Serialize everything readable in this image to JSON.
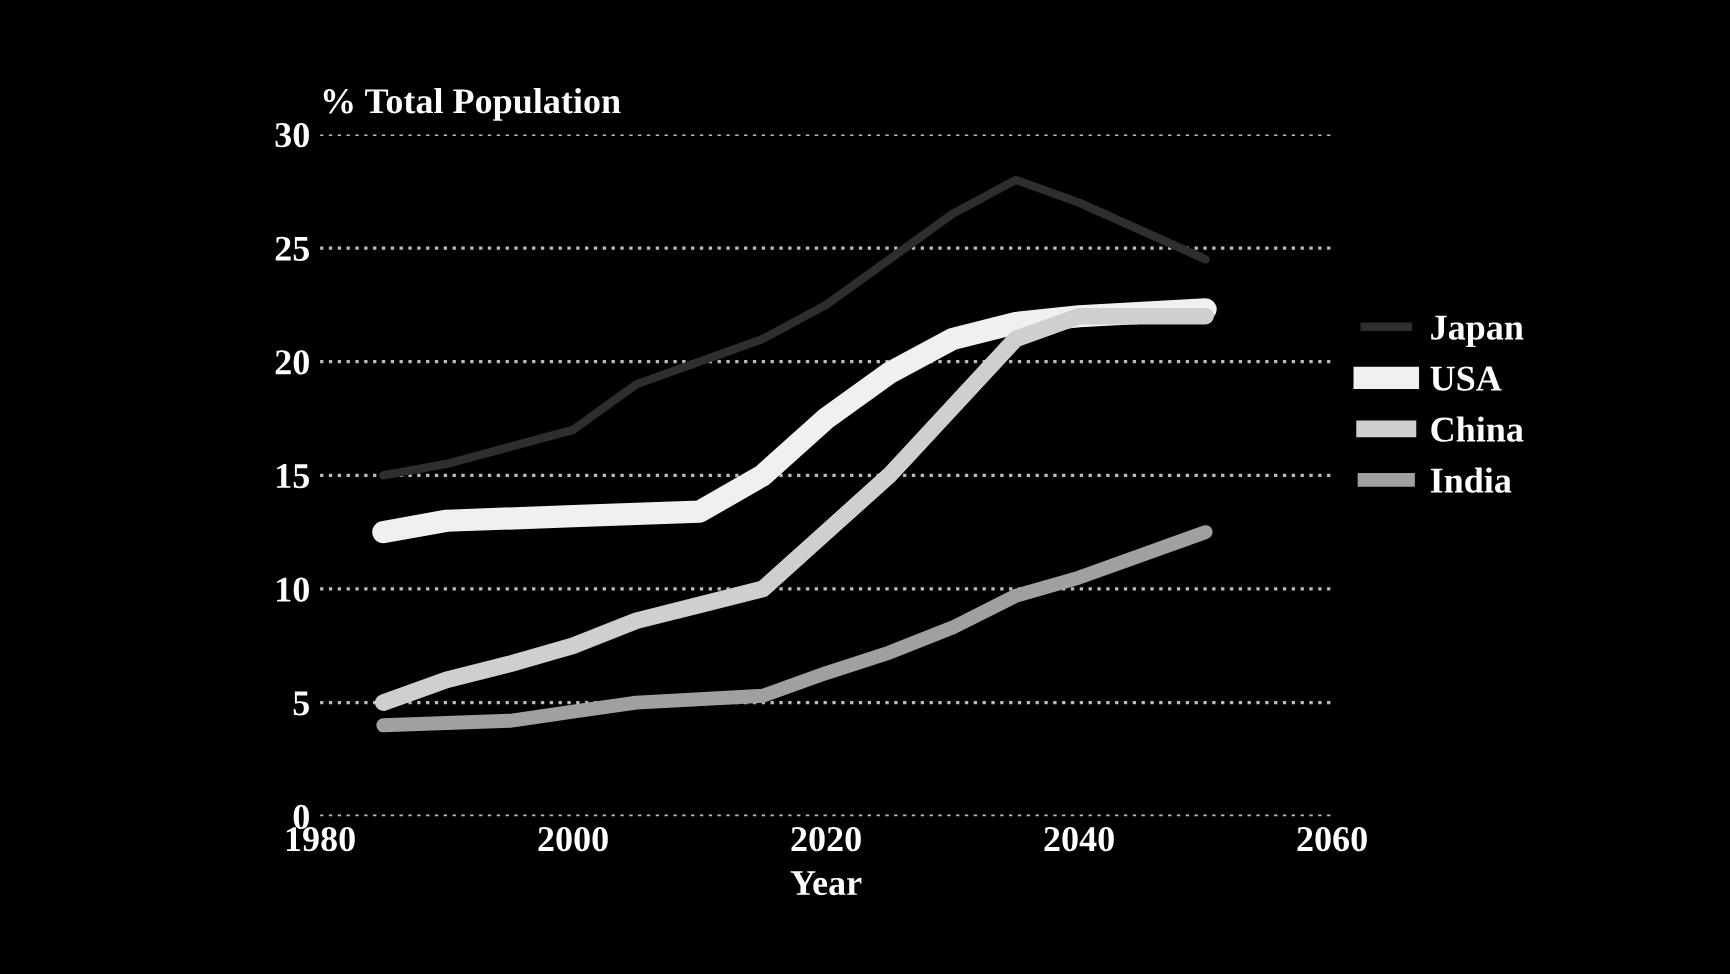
{
  "chart_data": {
    "type": "line",
    "ylabel": "% Total Population",
    "xlabel": "Year",
    "xlim": [
      1980,
      2060
    ],
    "xticks": [
      1980,
      2000,
      2020,
      2040,
      2060
    ],
    "ylim": [
      0,
      30
    ],
    "yticks": [
      0,
      5,
      10,
      15,
      20,
      25,
      30
    ],
    "grid": "y",
    "legend": "right",
    "marker": "none",
    "line_style": "solid",
    "series": [
      {
        "name": "Japan",
        "color": "#2e2e2e",
        "x": [
          1985,
          1990,
          2000,
          2005,
          2010,
          2015,
          2020,
          2025,
          2030,
          2035,
          2040,
          2050
        ],
        "values": [
          15,
          15.5,
          17,
          19,
          20,
          21,
          22.5,
          24.5,
          26.5,
          28,
          27,
          24.5
        ]
      },
      {
        "name": "USA",
        "color": "#f0f0f0",
        "x": [
          1985,
          1990,
          2000,
          2010,
          2015,
          2020,
          2025,
          2030,
          2035,
          2040,
          2050
        ],
        "values": [
          12.5,
          13,
          13.2,
          13.4,
          15,
          17.5,
          19.5,
          21,
          21.7,
          22,
          22.3
        ]
      },
      {
        "name": "China",
        "color": "#cfcfcf",
        "x": [
          1985,
          1990,
          1995,
          2000,
          2005,
          2010,
          2015,
          2020,
          2025,
          2030,
          2035,
          2040,
          2050
        ],
        "values": [
          5,
          6,
          6.7,
          7.5,
          8.6,
          9.3,
          10,
          12.5,
          15,
          18,
          21,
          22,
          22
        ]
      },
      {
        "name": "India",
        "color": "#a0a0a0",
        "x": [
          1985,
          1995,
          2000,
          2005,
          2015,
          2020,
          2025,
          2030,
          2035,
          2040,
          2050
        ],
        "values": [
          4,
          4.2,
          4.6,
          5,
          5.3,
          6.3,
          7.2,
          8.3,
          9.7,
          10.5,
          12.5
        ]
      }
    ]
  }
}
